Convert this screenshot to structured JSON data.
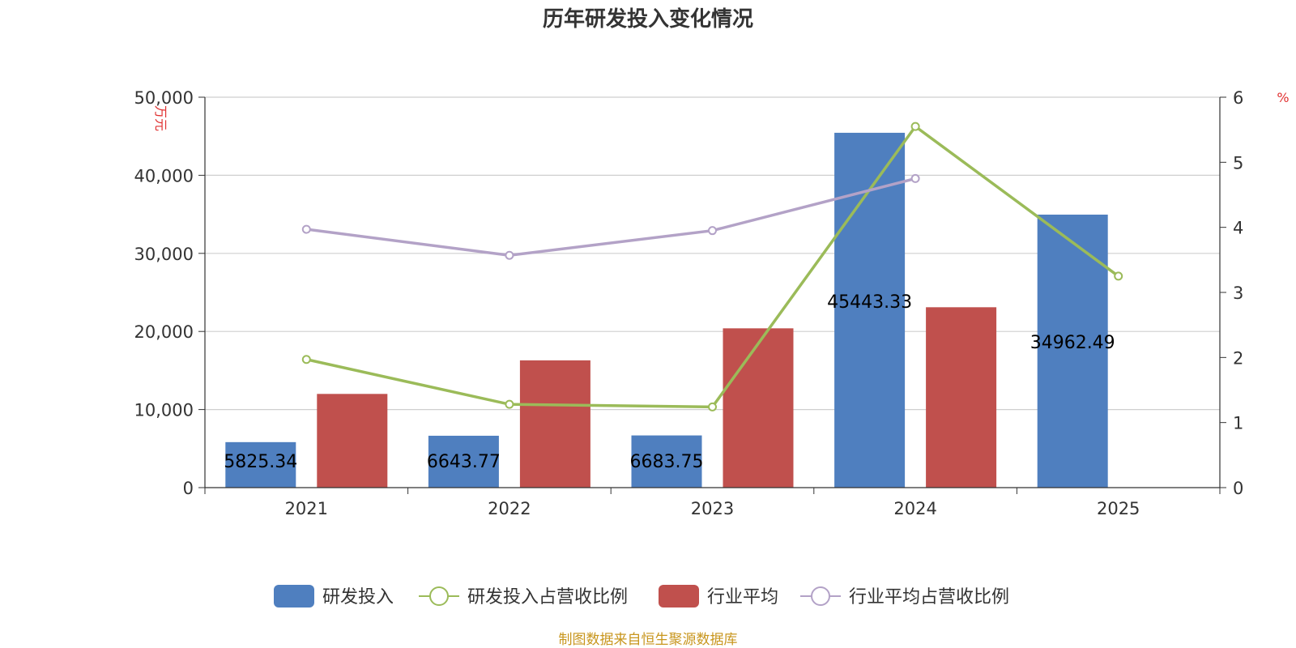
{
  "chart_data": {
    "type": "bar",
    "title": "历年研发投入变化情况",
    "categories": [
      "2021",
      "2022",
      "2023",
      "2024",
      "2025"
    ],
    "left_axis": {
      "unit": "万元",
      "ylim": [
        0,
        50000
      ],
      "ticks": [
        "0",
        "10,000",
        "20,000",
        "30,000",
        "40,000",
        "50,000"
      ],
      "tick_values": [
        0,
        10000,
        20000,
        30000,
        40000,
        50000
      ]
    },
    "right_axis": {
      "unit": "%",
      "ylim": [
        0,
        6
      ],
      "ticks": [
        "0",
        "1",
        "2",
        "3",
        "4",
        "5",
        "6"
      ],
      "tick_values": [
        0,
        1,
        2,
        3,
        4,
        5,
        6
      ]
    },
    "grid": true,
    "legend_position": "bottom",
    "series": [
      {
        "name": "研发投入",
        "kind": "bar",
        "axis": "left",
        "color": "#4f7fbf",
        "values": [
          5825.34,
          6643.77,
          6683.75,
          45443.33,
          34962.49
        ],
        "labels": [
          "5825.34",
          "6643.77",
          "6683.75",
          "45443.33",
          "34962.49"
        ]
      },
      {
        "name": "行业平均",
        "kind": "bar",
        "axis": "left",
        "color": "#c0504d",
        "values": [
          12000,
          16300,
          20400,
          23100,
          null
        ]
      },
      {
        "name": "研发投入占营收比例",
        "kind": "line",
        "axis": "right",
        "color": "#9bbb59",
        "values": [
          1.97,
          1.28,
          1.24,
          5.55,
          3.25
        ]
      },
      {
        "name": "行业平均占营收比例",
        "kind": "line",
        "axis": "right",
        "color": "#b3a2c7",
        "values": [
          3.97,
          3.57,
          3.95,
          4.75,
          null
        ]
      }
    ]
  },
  "source": "制图数据来自恒生聚源数据库"
}
